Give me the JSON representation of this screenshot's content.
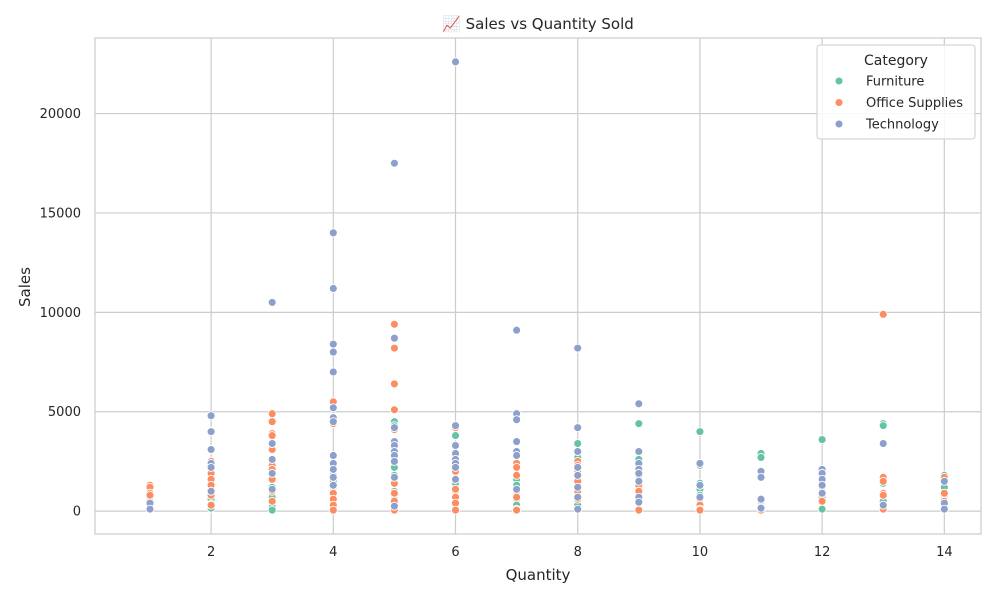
{
  "chart_data": {
    "type": "scatter",
    "title": "📈 Sales vs Quantity Sold",
    "xlabel": "Quantity",
    "ylabel": "Sales",
    "xlim": [
      0.1,
      14.6
    ],
    "ylim": [
      -1150,
      23800
    ],
    "xticks": [
      2,
      4,
      6,
      8,
      10,
      12,
      14
    ],
    "yticks": [
      0,
      5000,
      10000,
      15000,
      20000
    ],
    "grid": true,
    "legend": {
      "title": "Category",
      "placement": "top-right"
    },
    "series": [
      {
        "name": "Furniture",
        "color": "#66c2a5",
        "points": [
          [
            1,
            500
          ],
          [
            1,
            300
          ],
          [
            1,
            200
          ],
          [
            2,
            1700
          ],
          [
            2,
            1400
          ],
          [
            2,
            1100
          ],
          [
            2,
            900
          ],
          [
            2,
            600
          ],
          [
            2,
            350
          ],
          [
            2,
            150
          ],
          [
            3,
            1800
          ],
          [
            3,
            1200
          ],
          [
            3,
            900
          ],
          [
            3,
            700
          ],
          [
            3,
            400
          ],
          [
            3,
            200
          ],
          [
            3,
            50
          ],
          [
            4,
            2200
          ],
          [
            4,
            1800
          ],
          [
            4,
            1500
          ],
          [
            4,
            1200
          ],
          [
            4,
            900
          ],
          [
            4,
            600
          ],
          [
            4,
            300
          ],
          [
            4,
            100
          ],
          [
            5,
            4500
          ],
          [
            5,
            4300
          ],
          [
            5,
            2600
          ],
          [
            5,
            2200
          ],
          [
            5,
            1800
          ],
          [
            5,
            1400
          ],
          [
            5,
            1000
          ],
          [
            5,
            600
          ],
          [
            5,
            300
          ],
          [
            6,
            3800
          ],
          [
            6,
            2600
          ],
          [
            6,
            2000
          ],
          [
            6,
            1400
          ],
          [
            6,
            1000
          ],
          [
            6,
            600
          ],
          [
            6,
            300
          ],
          [
            7,
            2200
          ],
          [
            7,
            1600
          ],
          [
            7,
            1300
          ],
          [
            7,
            900
          ],
          [
            7,
            600
          ],
          [
            7,
            300
          ],
          [
            8,
            3400
          ],
          [
            8,
            2700
          ],
          [
            8,
            2300
          ],
          [
            8,
            1900
          ],
          [
            8,
            1500
          ],
          [
            8,
            1000
          ],
          [
            8,
            600
          ],
          [
            8,
            300
          ],
          [
            9,
            4400
          ],
          [
            9,
            2600
          ],
          [
            9,
            1800
          ],
          [
            9,
            1200
          ],
          [
            9,
            700
          ],
          [
            10,
            4000
          ],
          [
            10,
            2300
          ],
          [
            10,
            1400
          ],
          [
            10,
            1100
          ],
          [
            10,
            800
          ],
          [
            10,
            500
          ],
          [
            11,
            2900
          ],
          [
            11,
            2700
          ],
          [
            11,
            600
          ],
          [
            11,
            300
          ],
          [
            12,
            3600
          ],
          [
            12,
            1800
          ],
          [
            12,
            700
          ],
          [
            12,
            100
          ],
          [
            13,
            4400
          ],
          [
            13,
            4300
          ],
          [
            13,
            1400
          ],
          [
            13,
            500
          ],
          [
            14,
            1800
          ],
          [
            14,
            1200
          ],
          [
            14,
            800
          ]
        ]
      },
      {
        "name": "Office Supplies",
        "color": "#fc8d62",
        "points": [
          [
            1,
            1300
          ],
          [
            1,
            1200
          ],
          [
            1,
            900
          ],
          [
            1,
            800
          ],
          [
            2,
            2500
          ],
          [
            2,
            2100
          ],
          [
            2,
            1900
          ],
          [
            2,
            1600
          ],
          [
            2,
            1300
          ],
          [
            2,
            800
          ],
          [
            2,
            300
          ],
          [
            3,
            4900
          ],
          [
            3,
            4500
          ],
          [
            3,
            3900
          ],
          [
            3,
            3800
          ],
          [
            3,
            3100
          ],
          [
            3,
            2300
          ],
          [
            3,
            2100
          ],
          [
            3,
            1600
          ],
          [
            3,
            1000
          ],
          [
            3,
            500
          ],
          [
            4,
            5500
          ],
          [
            4,
            4400
          ],
          [
            4,
            1300
          ],
          [
            4,
            900
          ],
          [
            4,
            600
          ],
          [
            4,
            300
          ],
          [
            4,
            50
          ],
          [
            5,
            9400
          ],
          [
            5,
            8200
          ],
          [
            5,
            6400
          ],
          [
            5,
            5100
          ],
          [
            5,
            4100
          ],
          [
            5,
            3000
          ],
          [
            5,
            1400
          ],
          [
            5,
            900
          ],
          [
            5,
            500
          ],
          [
            5,
            50
          ],
          [
            6,
            4300
          ],
          [
            6,
            4200
          ],
          [
            6,
            2000
          ],
          [
            6,
            1600
          ],
          [
            6,
            1100
          ],
          [
            6,
            700
          ],
          [
            6,
            400
          ],
          [
            6,
            50
          ],
          [
            7,
            2400
          ],
          [
            7,
            2200
          ],
          [
            7,
            1800
          ],
          [
            7,
            1000
          ],
          [
            7,
            700
          ],
          [
            7,
            100
          ],
          [
            7,
            50
          ],
          [
            8,
            2500
          ],
          [
            8,
            2300
          ],
          [
            8,
            2000
          ],
          [
            8,
            1500
          ],
          [
            8,
            1000
          ],
          [
            8,
            600
          ],
          [
            9,
            2200
          ],
          [
            9,
            1300
          ],
          [
            9,
            1000
          ],
          [
            9,
            600
          ],
          [
            9,
            50
          ],
          [
            10,
            600
          ],
          [
            10,
            300
          ],
          [
            10,
            100
          ],
          [
            10,
            50
          ],
          [
            11,
            500
          ],
          [
            11,
            300
          ],
          [
            11,
            50
          ],
          [
            12,
            1600
          ],
          [
            12,
            1200
          ],
          [
            12,
            500
          ],
          [
            13,
            9900
          ],
          [
            13,
            1700
          ],
          [
            13,
            1500
          ],
          [
            13,
            900
          ],
          [
            13,
            800
          ],
          [
            13,
            300
          ],
          [
            13,
            100
          ],
          [
            14,
            1700
          ],
          [
            14,
            900
          ],
          [
            14,
            500
          ],
          [
            14,
            200
          ]
        ]
      },
      {
        "name": "Technology",
        "color": "#8da0cb",
        "points": [
          [
            1,
            400
          ],
          [
            1,
            100
          ],
          [
            2,
            4800
          ],
          [
            2,
            4000
          ],
          [
            2,
            3100
          ],
          [
            2,
            2400
          ],
          [
            2,
            2200
          ],
          [
            2,
            1000
          ],
          [
            3,
            10500
          ],
          [
            3,
            3400
          ],
          [
            3,
            2600
          ],
          [
            3,
            1900
          ],
          [
            3,
            1100
          ],
          [
            4,
            14000
          ],
          [
            4,
            11200
          ],
          [
            4,
            8400
          ],
          [
            4,
            8000
          ],
          [
            4,
            7000
          ],
          [
            4,
            5200
          ],
          [
            4,
            4700
          ],
          [
            4,
            4500
          ],
          [
            4,
            2800
          ],
          [
            4,
            2400
          ],
          [
            4,
            2100
          ],
          [
            4,
            1700
          ],
          [
            4,
            1300
          ],
          [
            5,
            17500
          ],
          [
            5,
            8700
          ],
          [
            5,
            4200
          ],
          [
            5,
            3500
          ],
          [
            5,
            3300
          ],
          [
            5,
            3000
          ],
          [
            5,
            2800
          ],
          [
            5,
            2500
          ],
          [
            5,
            1700
          ],
          [
            5,
            250
          ],
          [
            6,
            22600
          ],
          [
            6,
            4300
          ],
          [
            6,
            3300
          ],
          [
            6,
            2900
          ],
          [
            6,
            2600
          ],
          [
            6,
            2400
          ],
          [
            6,
            2200
          ],
          [
            6,
            1600
          ],
          [
            7,
            9100
          ],
          [
            7,
            4900
          ],
          [
            7,
            4600
          ],
          [
            7,
            3500
          ],
          [
            7,
            3000
          ],
          [
            7,
            2800
          ],
          [
            7,
            1100
          ],
          [
            8,
            8200
          ],
          [
            8,
            4200
          ],
          [
            8,
            3000
          ],
          [
            8,
            2200
          ],
          [
            8,
            1800
          ],
          [
            8,
            1200
          ],
          [
            8,
            700
          ],
          [
            8,
            100
          ],
          [
            9,
            5400
          ],
          [
            9,
            3000
          ],
          [
            9,
            2400
          ],
          [
            9,
            2100
          ],
          [
            9,
            1900
          ],
          [
            9,
            1500
          ],
          [
            9,
            700
          ],
          [
            9,
            450
          ],
          [
            10,
            2400
          ],
          [
            10,
            1300
          ],
          [
            10,
            700
          ],
          [
            11,
            2000
          ],
          [
            11,
            1700
          ],
          [
            11,
            600
          ],
          [
            11,
            200
          ],
          [
            11,
            150
          ],
          [
            12,
            2100
          ],
          [
            12,
            1900
          ],
          [
            12,
            1600
          ],
          [
            12,
            1300
          ],
          [
            12,
            900
          ],
          [
            13,
            3400
          ],
          [
            13,
            300
          ],
          [
            14,
            1500
          ],
          [
            14,
            400
          ],
          [
            14,
            100
          ]
        ]
      }
    ]
  }
}
